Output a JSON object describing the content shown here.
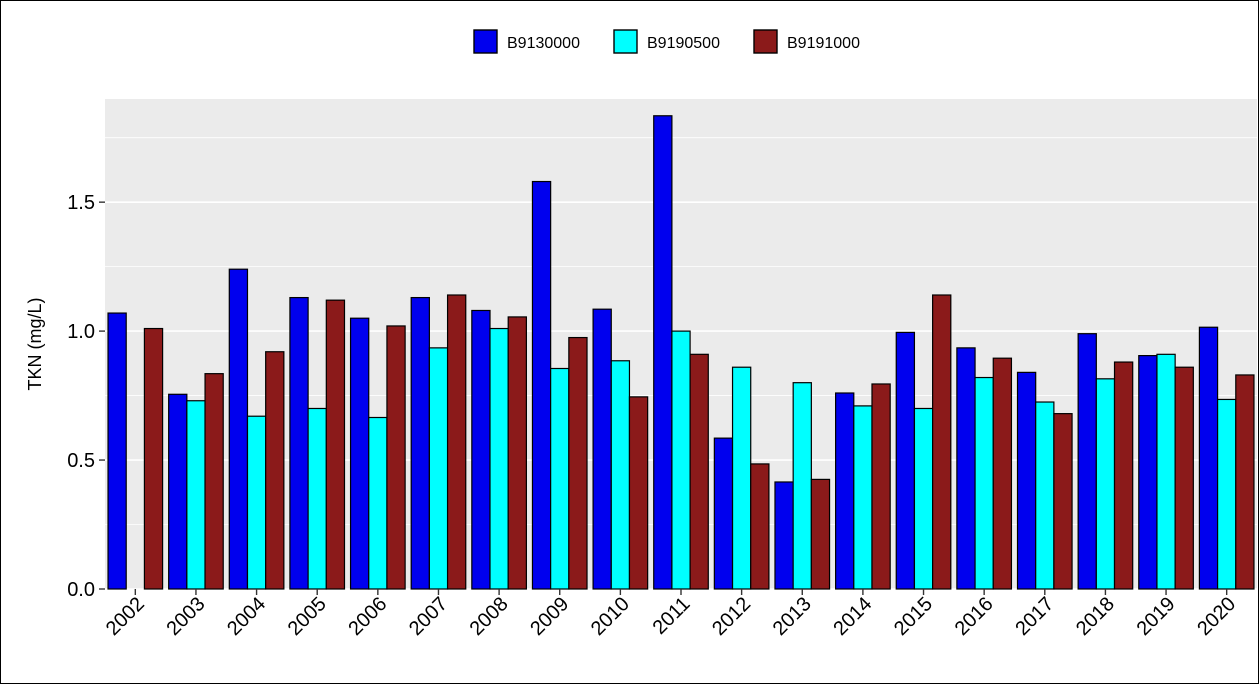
{
  "chart_data": {
    "type": "bar",
    "xlabel": "",
    "ylabel": "TKN (mg/L)",
    "ylim": [
      0,
      1.9
    ],
    "yticks": [
      0.0,
      0.5,
      1.0,
      1.5
    ],
    "ytick_labels": [
      "0.0",
      "0.5",
      "1.0",
      "1.5"
    ],
    "grid": true,
    "legend_position": "top",
    "categories": [
      "2002",
      "2003",
      "2004",
      "2005",
      "2006",
      "2007",
      "2008",
      "2009",
      "2010",
      "2011",
      "2012",
      "2013",
      "2014",
      "2015",
      "2016",
      "2017",
      "2018",
      "2019",
      "2020"
    ],
    "series": [
      {
        "name": "B9130000",
        "color": "#0000ee",
        "values": [
          1.07,
          0.755,
          1.24,
          1.13,
          1.05,
          1.13,
          1.08,
          1.58,
          1.085,
          1.835,
          0.585,
          0.415,
          0.76,
          0.995,
          0.935,
          0.84,
          0.99,
          0.905,
          1.015
        ]
      },
      {
        "name": "B9190500",
        "color": "#00ffff",
        "values": [
          null,
          0.73,
          0.67,
          0.7,
          0.665,
          0.935,
          1.01,
          0.855,
          0.885,
          1.0,
          0.86,
          0.8,
          0.71,
          0.7,
          0.82,
          0.725,
          0.815,
          0.91,
          0.735
        ]
      },
      {
        "name": "B9191000",
        "color": "#8b1a1a",
        "values": [
          1.01,
          0.835,
          0.92,
          1.12,
          1.02,
          1.14,
          1.055,
          0.975,
          0.745,
          0.91,
          0.485,
          0.425,
          0.795,
          1.14,
          0.895,
          0.68,
          0.88,
          0.86,
          0.83
        ]
      }
    ]
  }
}
